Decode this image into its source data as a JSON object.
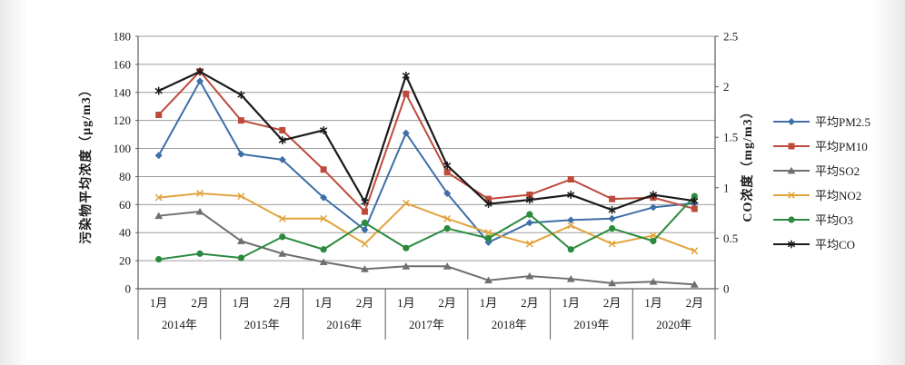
{
  "chart_data": {
    "type": "line",
    "title": "",
    "grid": true,
    "legend_position": "right",
    "x_axis": {
      "years": [
        "2014年",
        "2015年",
        "2016年",
        "2017年",
        "2018年",
        "2019年",
        "2020年"
      ],
      "months": [
        "1月",
        "2月"
      ],
      "categories": [
        "2014年1月",
        "2014年2月",
        "2015年1月",
        "2015年2月",
        "2016年1月",
        "2016年2月",
        "2017年1月",
        "2017年2月",
        "2018年1月",
        "2018年2月",
        "2019年1月",
        "2019年2月",
        "2020年1月",
        "2020年2月"
      ]
    },
    "left_axis": {
      "label": "污染物平均浓度（μg/m3）",
      "min": 0,
      "max": 180,
      "tick_step": 20,
      "tick_labels": [
        "180",
        "160",
        "140",
        "120",
        "100",
        "80",
        "60",
        "40",
        "20",
        "0"
      ]
    },
    "right_axis": {
      "label": "CO浓度（mg/m3）",
      "min": 0,
      "max": 2.5,
      "tick_step": 0.5,
      "tick_labels": [
        "2.5",
        "2",
        "1.5",
        "1",
        "0.5",
        "0"
      ]
    },
    "series": [
      {
        "key": "pm25",
        "name": "平均PM2.5",
        "unit": "μg/m3",
        "axis": "left",
        "color": "#3E6FA7",
        "marker": "diamond",
        "values": [
          95,
          148,
          96,
          92,
          65,
          42,
          111,
          68,
          33,
          47,
          49,
          50,
          58,
          61
        ]
      },
      {
        "key": "pm10",
        "name": "平均PM10",
        "unit": "μg/m3",
        "axis": "left",
        "color": "#BE4A3C",
        "marker": "square",
        "values": [
          124,
          155,
          120,
          113,
          85,
          55,
          139,
          83,
          64,
          67,
          78,
          64,
          65,
          57
        ]
      },
      {
        "key": "so2",
        "name": "平均SO2",
        "unit": "μg/m3",
        "axis": "left",
        "color": "#6F6F6F",
        "marker": "triangle",
        "values": [
          52,
          55,
          34,
          25,
          19,
          14,
          16,
          16,
          6,
          9,
          7,
          4,
          5,
          3
        ]
      },
      {
        "key": "no2",
        "name": "平均NO2",
        "unit": "μg/m3",
        "axis": "left",
        "color": "#E2A33C",
        "marker": "x",
        "values": [
          65,
          68,
          66,
          50,
          50,
          32,
          61,
          50,
          40,
          32,
          45,
          32,
          38,
          27
        ]
      },
      {
        "key": "o3",
        "name": "平均O3",
        "unit": "μg/m3",
        "axis": "left",
        "color": "#2B8A3E",
        "marker": "circle",
        "values": [
          21,
          25,
          22,
          37,
          28,
          47,
          29,
          43,
          36,
          53,
          28,
          43,
          34,
          66
        ]
      },
      {
        "key": "co",
        "name": "平均CO",
        "unit": "mg/m3",
        "axis": "right",
        "color": "#1A1A1A",
        "marker": "asterisk",
        "values": [
          1.96,
          2.15,
          1.92,
          1.47,
          1.57,
          0.86,
          2.11,
          1.22,
          0.84,
          0.88,
          0.93,
          0.78,
          0.93,
          0.87
        ]
      }
    ]
  }
}
